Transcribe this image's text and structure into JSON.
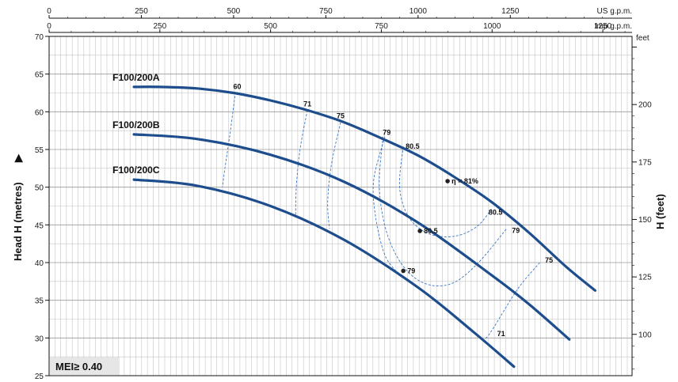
{
  "chart_data": {
    "type": "line",
    "title": "",
    "ylabel_left": "Head H (metres)",
    "ylabel_right": "H (feet)",
    "xaxis_top_1": {
      "unit": "US g.p.m.",
      "ticks": [
        "0",
        "250",
        "500",
        "750",
        "1000",
        "1250"
      ],
      "range": [
        0,
        1580
      ]
    },
    "xaxis_top_2": {
      "unit": "Imp g.p.m.",
      "ticks": [
        "0",
        "250",
        "500",
        "750",
        "1000",
        "1250"
      ],
      "range": [
        0,
        1316
      ]
    },
    "ylim_left": [
      25,
      70
    ],
    "yticks_left": [
      "25",
      "30",
      "35",
      "40",
      "45",
      "50",
      "55",
      "60",
      "65",
      "70"
    ],
    "right_unit": "feet",
    "yticks_right": [
      "100",
      "125",
      "150",
      "175",
      "200"
    ],
    "grid": true,
    "mei_label": "MEI≥ 0.40",
    "series": [
      {
        "name": "F100/200A",
        "x_us_gpm": [
          230,
          300,
          400,
          500,
          600,
          700,
          800,
          900,
          1000,
          1100,
          1200,
          1300,
          1400,
          1480
        ],
        "y_m": [
          63.3,
          63.3,
          63.1,
          62.5,
          61.5,
          60.2,
          58.6,
          56.5,
          54.2,
          51.3,
          48.0,
          44.0,
          39.5,
          36.3
        ]
      },
      {
        "name": "F100/200B",
        "x_us_gpm": [
          230,
          400,
          600,
          800,
          1000,
          1200,
          1300,
          1410
        ],
        "y_m": [
          57.0,
          56.4,
          54.3,
          50.7,
          45.3,
          38.3,
          34.5,
          29.8
        ]
      },
      {
        "name": "F100/200C",
        "x_us_gpm": [
          230,
          400,
          600,
          800,
          1000,
          1150,
          1260
        ],
        "y_m": [
          51.0,
          50.2,
          47.5,
          43.0,
          36.7,
          30.8,
          26.2
        ]
      }
    ],
    "efficiency_labels": [
      {
        "text": "60",
        "x_us_gpm": 510,
        "y_m": 62.5,
        "marker": false
      },
      {
        "text": "71",
        "x_us_gpm": 700,
        "y_m": 60.2,
        "marker": false
      },
      {
        "text": "75",
        "x_us_gpm": 790,
        "y_m": 58.6,
        "marker": false
      },
      {
        "text": "79",
        "x_us_gpm": 915,
        "y_m": 56.4,
        "marker": false
      },
      {
        "text": "80.5",
        "x_us_gpm": 985,
        "y_m": 54.6,
        "marker": false
      },
      {
        "text": "η = 81%",
        "x_us_gpm": 1080,
        "y_m": 50.8,
        "marker": true
      },
      {
        "text": "80.5",
        "x_us_gpm": 1210,
        "y_m": 45.8,
        "marker": false
      },
      {
        "text": "79",
        "x_us_gpm": 1265,
        "y_m": 43.4,
        "marker": false
      },
      {
        "text": "75",
        "x_us_gpm": 1355,
        "y_m": 39.5,
        "marker": false
      },
      {
        "text": "80.5",
        "x_us_gpm": 1005,
        "y_m": 44.2,
        "marker": true
      },
      {
        "text": "79",
        "x_us_gpm": 960,
        "y_m": 38.9,
        "marker": true
      },
      {
        "text": "71",
        "x_us_gpm": 1225,
        "y_m": 29.7,
        "marker": false
      }
    ]
  },
  "colors": {
    "curve": "#1d4d8c",
    "dashed": "#3a78c8",
    "grid": "#c4c4c4",
    "axis": "#111111"
  }
}
